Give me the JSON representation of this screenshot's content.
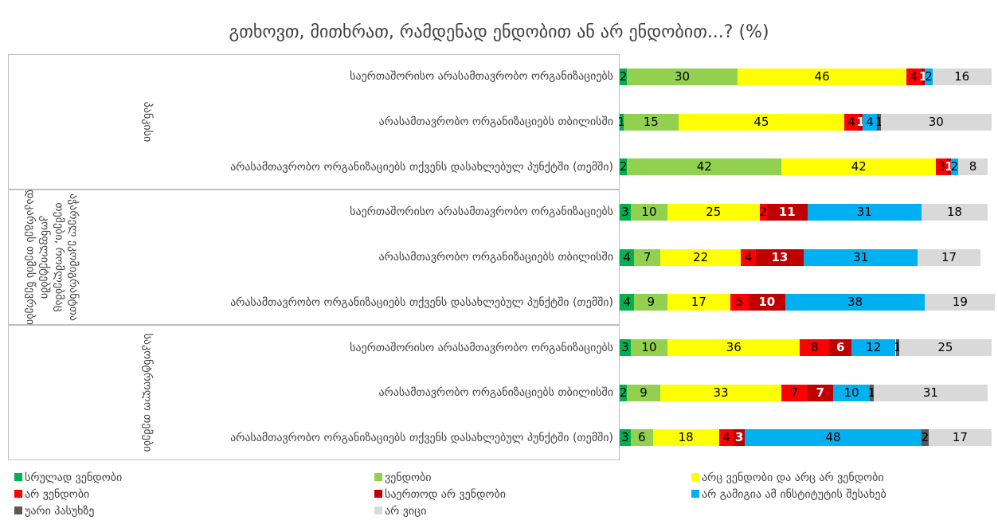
{
  "chart_data": {
    "type": "stacked_bar_horizontal",
    "title": "გთხოვთ, მითხრათ, რამდენად ენდობით ან არ ენდობით...? (%)",
    "groups": [
      {
        "name": "პანკისი",
        "categories": [
          "საერთაშორისო არასამთავრობო ორგანიზაციებს",
          "არასამთავრობო ორგანიზაციებს თბილისში",
          "არასამთავრობო ორგანიზაციებს თქვენს დასახლებულ პუნქტში (თემში)"
        ]
      },
      {
        "name": "აჭარელ ეკომიგრანტთა თემები, რომლებმაც კონფლიქტებში დაკარგეს თემის წევრები",
        "categories": [
          "საერთაშორისო არასამთავრობო ორგანიზაციებს",
          "არასამთავრობო ორგანიზაციებს თბილისში",
          "არასამთავრობო ორგანიზაციებს თქვენს დასახლებულ პუნქტში (თემში)"
        ]
      },
      {
        "name": "საკონტროლო თემები",
        "categories": [
          "საერთაშორისო არასამთავრობო ორგანიზაციებს",
          "არასამთავრობო ორგანიზაციებს თბილისში",
          "არასამთავრობო ორგანიზაციებს თქვენს დასახლებულ პუნქტში (თემში)"
        ]
      }
    ],
    "series": [
      {
        "name": "სრულად ვენდობი",
        "color": "#00b050",
        "values": [
          2,
          1,
          2,
          3,
          4,
          4,
          3,
          2,
          3
        ]
      },
      {
        "name": "ვენდობი",
        "color": "#92d050",
        "values": [
          30,
          15,
          42,
          10,
          7,
          9,
          10,
          9,
          6
        ]
      },
      {
        "name": "არც ვენდობი და არც არ ვენდობი",
        "color": "#ffff00",
        "values": [
          46,
          45,
          42,
          25,
          22,
          17,
          36,
          33,
          18
        ]
      },
      {
        "name": "არ ვენდობი",
        "color": "#ff0000",
        "values": [
          4,
          4,
          3,
          2,
          4,
          5,
          8,
          7,
          4
        ]
      },
      {
        "name": "საერთოდ არ ვენდობი",
        "color": "#c00000",
        "values": [
          1,
          1,
          1,
          11,
          13,
          10,
          6,
          7,
          3
        ]
      },
      {
        "name": "არ გამიგია ამ ინსტიტუტის შესახებ",
        "color": "#00b0f0",
        "values": [
          2,
          4,
          2,
          31,
          31,
          38,
          12,
          10,
          48
        ]
      },
      {
        "name": "უარი პასუხზე",
        "color": "#595959",
        "values": [
          0,
          1,
          0,
          0,
          0,
          0,
          1,
          1,
          2
        ]
      },
      {
        "name": "არ ვიცი",
        "color": "#d9d9d9",
        "values": [
          16,
          30,
          8,
          18,
          17,
          19,
          25,
          31,
          17
        ]
      }
    ]
  }
}
